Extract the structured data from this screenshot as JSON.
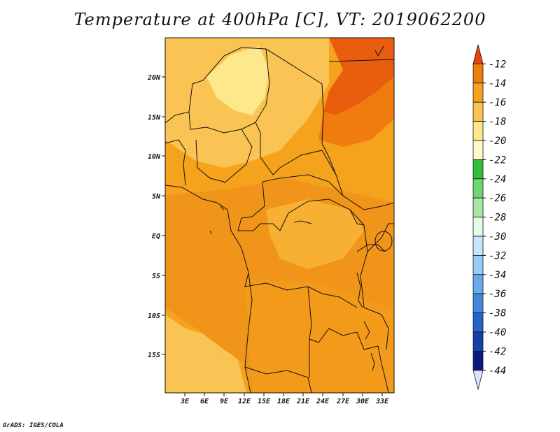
{
  "title": "Temperature at 400hPa [C], VT: 2019062200",
  "credit": "GrADS: IGES/COLA",
  "map": {
    "lat_labels": [
      "20N",
      "15N",
      "10N",
      "5N",
      "EQ",
      "5S",
      "10S",
      "15S"
    ],
    "lon_labels": [
      "3E",
      "6E",
      "9E",
      "12E",
      "15E",
      "18E",
      "21E",
      "24E",
      "27E",
      "30E",
      "33E"
    ],
    "region": "Central Africa"
  },
  "colorbar": {
    "labels": [
      "-12",
      "-14",
      "-16",
      "-18",
      "-20",
      "-22",
      "-24",
      "-26",
      "-28",
      "-30",
      "-32",
      "-34",
      "-36",
      "-38",
      "-40",
      "-42",
      "-44"
    ],
    "colors": [
      "#e8440c",
      "#f07b0f",
      "#f5a21c",
      "#f9c453",
      "#fde98c",
      "#fff8c7",
      "#2fbf39",
      "#6fd571",
      "#a7e8a4",
      "#e4fbe6",
      "#c5e6fb",
      "#98cbf5",
      "#6ba9ea",
      "#4488dd",
      "#2762cc",
      "#1340aa",
      "#0b1a7a",
      "#e0e0ff"
    ]
  },
  "colors": {
    "dominant_field": "#f5a21c",
    "warm_field": "#f07b0f",
    "cool_field": "#fde98c"
  }
}
